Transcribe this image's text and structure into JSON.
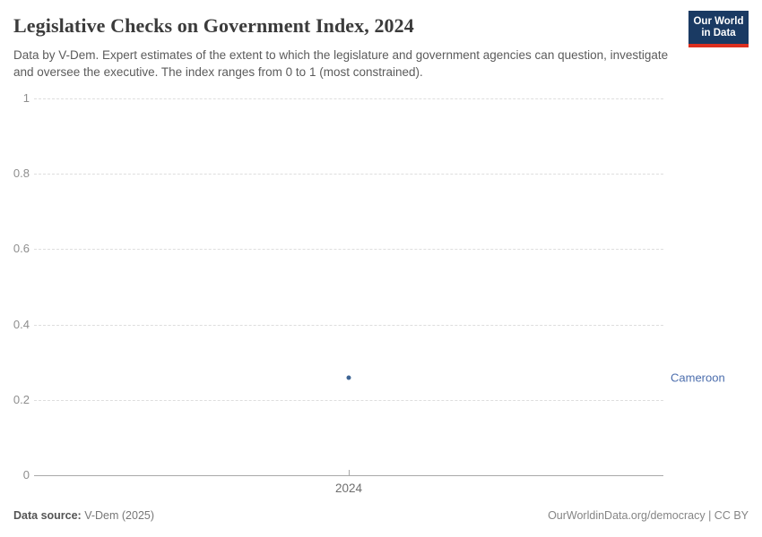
{
  "header": {
    "title": "Legislative Checks on Government Index, 2024",
    "subtitle": "Data by V-Dem. Expert estimates of the extent to which the legislature and government agencies can question, investigate and oversee the executive. The index ranges from 0 to 1 (most constrained).",
    "logo": {
      "line1": "Our World",
      "line2": "in Data",
      "bg_color": "#1a3a63",
      "accent_color": "#dc2f1f"
    }
  },
  "chart_data": {
    "type": "scatter",
    "title": "Legislative Checks on Government Index, 2024",
    "x": [
      "2024"
    ],
    "series": [
      {
        "name": "Cameroon",
        "values": [
          0.26
        ],
        "color": "#3d6493",
        "label_color": "#4c6ead"
      }
    ],
    "ylim": [
      0,
      1
    ],
    "yticks": [
      0,
      0.2,
      0.4,
      0.6,
      0.8,
      1
    ],
    "ytick_labels": [
      "0",
      "0.2",
      "0.4",
      "0.6",
      "0.8",
      "1"
    ],
    "xtick_labels": [
      "2024"
    ],
    "grid": "horizontal-dashed",
    "legend_position": "right-entity-label",
    "entity_label": "Cameroon"
  },
  "footer": {
    "source_label": "Data source:",
    "source_value": " V-Dem (2025)",
    "credit": "OurWorldinData.org/democracy | CC BY"
  }
}
